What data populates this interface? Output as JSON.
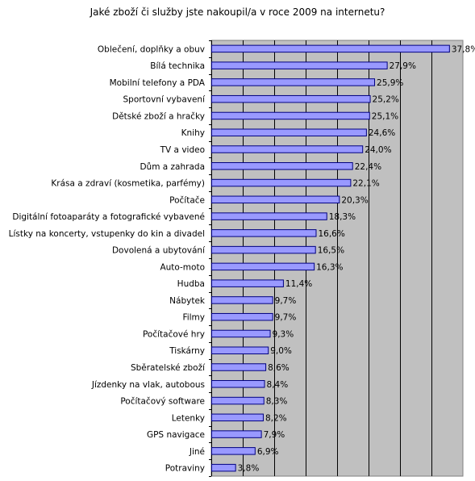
{
  "chart_data": {
    "type": "bar",
    "orientation": "horizontal",
    "title": "Jaké zboží či služby jste nakoupil/a v roce 2009 na internetu?",
    "xlabel": "",
    "ylabel": "",
    "xlim": [
      0,
      40
    ],
    "grid": true,
    "legend": "none",
    "colors": {
      "bar_fill": "#9999FF",
      "bar_stroke": "#000080",
      "plot_bg": "#C0C0C0",
      "gridline": "#000000"
    },
    "categories": [
      "Oblečení, doplňky a obuv",
      "Bílá technika",
      "Mobilní telefony a PDA",
      "Sportovní vybavení",
      "Dětské zboží a hračky",
      "Knihy",
      "TV a video",
      "Dům a zahrada",
      "Krása a zdraví (kosmetika, parfémy)",
      "Počítače",
      "Digitální fotoaparáty a fotografické vybavené",
      "Lístky na koncerty, vstupenky do kin a divadel",
      "Dovolená a ubytování",
      "Auto-moto",
      "Hudba",
      "Nábytek",
      "Filmy",
      "Počítačové hry",
      "Tiskárny",
      "Sběratelské zboží",
      "Jízdenky na vlak, autobous",
      "Počítačový software",
      "Letenky",
      "GPS navigace",
      "Jiné",
      "Potraviny"
    ],
    "values": [
      37.8,
      27.9,
      25.9,
      25.2,
      25.1,
      24.6,
      24.0,
      22.4,
      22.1,
      20.3,
      18.3,
      16.6,
      16.5,
      16.3,
      11.4,
      9.7,
      9.7,
      9.3,
      9.0,
      8.6,
      8.4,
      8.3,
      8.2,
      7.9,
      6.9,
      3.8
    ],
    "value_labels": [
      "37,8%",
      "27,9%",
      "25,9%",
      "25,2%",
      "25,1%",
      "24,6%",
      "24,0%",
      "22,4%",
      "22,1%",
      "20,3%",
      "18,3%",
      "16,6%",
      "16,5%",
      "16,3%",
      "11,4%",
      "9,7%",
      "9,7%",
      "9,3%",
      "9,0%",
      "8,6%",
      "8,4%",
      "8,3%",
      "8,2%",
      "7,9%",
      "6,9%",
      "3,8%"
    ]
  }
}
